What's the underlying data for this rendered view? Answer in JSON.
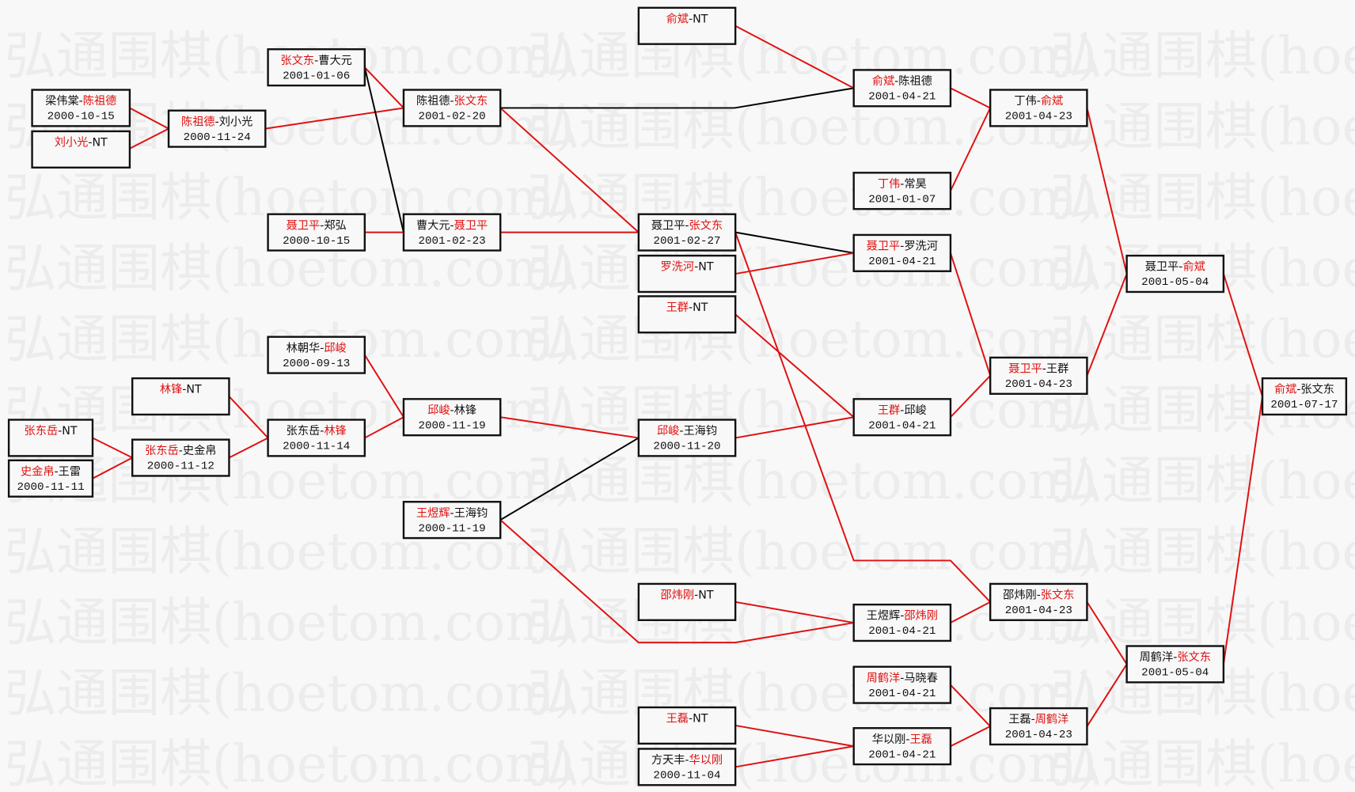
{
  "watermark": "弘通围棋(hoetom.com)",
  "colors": {
    "winner": "#e01010",
    "loser_link": "#000000",
    "text": "#111111"
  },
  "matches": [
    {
      "id": "A",
      "players": [
        {
          "name": "梁伟棠",
          "winner": false
        },
        {
          "name": "陈祖德",
          "winner": true
        }
      ],
      "date": "2000-10-15"
    },
    {
      "id": "B",
      "players": [
        {
          "name": "刘小光",
          "winner": true
        },
        {
          "name": "NT",
          "winner": false
        }
      ],
      "date": ""
    },
    {
      "id": "C",
      "players": [
        {
          "name": "陈祖德",
          "winner": true
        },
        {
          "name": "刘小光",
          "winner": false
        }
      ],
      "date": "2000-11-24"
    },
    {
      "id": "D",
      "players": [
        {
          "name": "张文东",
          "winner": true
        },
        {
          "name": "曹大元",
          "winner": false
        }
      ],
      "date": "2001-01-06"
    },
    {
      "id": "E",
      "players": [
        {
          "name": "聂卫平",
          "winner": true
        },
        {
          "name": "郑弘",
          "winner": false
        }
      ],
      "date": "2000-10-15"
    },
    {
      "id": "F",
      "players": [
        {
          "name": "陈祖德",
          "winner": false
        },
        {
          "name": "张文东",
          "winner": true
        }
      ],
      "date": "2001-02-20"
    },
    {
      "id": "G",
      "players": [
        {
          "name": "曹大元",
          "winner": false
        },
        {
          "name": "聂卫平",
          "winner": true
        }
      ],
      "date": "2001-02-23"
    },
    {
      "id": "H",
      "players": [
        {
          "name": "聂卫平",
          "winner": false
        },
        {
          "name": "张文东",
          "winner": true
        }
      ],
      "date": "2001-02-27"
    },
    {
      "id": "I",
      "players": [
        {
          "name": "俞斌",
          "winner": true
        },
        {
          "name": "NT",
          "winner": false
        }
      ],
      "date": ""
    },
    {
      "id": "J",
      "players": [
        {
          "name": "罗洗河",
          "winner": true
        },
        {
          "name": "NT",
          "winner": false
        }
      ],
      "date": ""
    },
    {
      "id": "K",
      "players": [
        {
          "name": "王群",
          "winner": true
        },
        {
          "name": "NT",
          "winner": false
        }
      ],
      "date": ""
    },
    {
      "id": "L",
      "players": [
        {
          "name": "俞斌",
          "winner": true
        },
        {
          "name": "陈祖德",
          "winner": false
        }
      ],
      "date": "2001-04-21"
    },
    {
      "id": "M",
      "players": [
        {
          "name": "丁伟",
          "winner": true
        },
        {
          "name": "常昊",
          "winner": false
        }
      ],
      "date": "2001-01-07"
    },
    {
      "id": "N",
      "players": [
        {
          "name": "聂卫平",
          "winner": true
        },
        {
          "name": "罗洗河",
          "winner": false
        }
      ],
      "date": "2001-04-21"
    },
    {
      "id": "O",
      "players": [
        {
          "name": "王群",
          "winner": true
        },
        {
          "name": "邱峻",
          "winner": false
        }
      ],
      "date": "2001-04-21"
    },
    {
      "id": "P",
      "players": [
        {
          "name": "丁伟",
          "winner": false
        },
        {
          "name": "俞斌",
          "winner": true
        }
      ],
      "date": "2001-04-23"
    },
    {
      "id": "Q",
      "players": [
        {
          "name": "聂卫平",
          "winner": true
        },
        {
          "name": "王群",
          "winner": false
        }
      ],
      "date": "2001-04-23"
    },
    {
      "id": "R",
      "players": [
        {
          "name": "聂卫平",
          "winner": false
        },
        {
          "name": "俞斌",
          "winner": true
        }
      ],
      "date": "2001-05-04"
    },
    {
      "id": "S",
      "players": [
        {
          "name": "俞斌",
          "winner": true
        },
        {
          "name": "张文东",
          "winner": false
        }
      ],
      "date": "2001-07-17"
    },
    {
      "id": "T",
      "players": [
        {
          "name": "周鹤洋",
          "winner": false
        },
        {
          "name": "张文东",
          "winner": true
        }
      ],
      "date": "2001-05-04"
    },
    {
      "id": "U",
      "players": [
        {
          "name": "邵炜刚",
          "winner": false
        },
        {
          "name": "张文东",
          "winner": true
        }
      ],
      "date": "2001-04-23"
    },
    {
      "id": "V",
      "players": [
        {
          "name": "王磊",
          "winner": false
        },
        {
          "name": "周鹤洋",
          "winner": true
        }
      ],
      "date": "2001-04-23"
    },
    {
      "id": "W",
      "players": [
        {
          "name": "王煜辉",
          "winner": false
        },
        {
          "name": "邵炜刚",
          "winner": true
        }
      ],
      "date": "2001-04-21"
    },
    {
      "id": "X",
      "players": [
        {
          "name": "周鹤洋",
          "winner": true
        },
        {
          "name": "马晓春",
          "winner": false
        }
      ],
      "date": "2001-04-21"
    },
    {
      "id": "Y",
      "players": [
        {
          "name": "华以刚",
          "winner": false
        },
        {
          "name": "王磊",
          "winner": true
        }
      ],
      "date": "2001-04-21"
    },
    {
      "id": "Z",
      "players": [
        {
          "name": "王磊",
          "winner": true
        },
        {
          "name": "NT",
          "winner": false
        }
      ],
      "date": ""
    },
    {
      "id": "AA",
      "players": [
        {
          "name": "方天丰",
          "winner": false
        },
        {
          "name": "华以刚",
          "winner": true
        }
      ],
      "date": "2000-11-04"
    },
    {
      "id": "AB",
      "players": [
        {
          "name": "邵炜刚",
          "winner": true
        },
        {
          "name": "NT",
          "winner": false
        }
      ],
      "date": ""
    },
    {
      "id": "AC",
      "players": [
        {
          "name": "邱峻",
          "winner": true
        },
        {
          "name": "王海钧",
          "winner": false
        }
      ],
      "date": "2000-11-20"
    },
    {
      "id": "AD",
      "players": [
        {
          "name": "王煜辉",
          "winner": true
        },
        {
          "name": "王海钧",
          "winner": false
        }
      ],
      "date": "2000-11-19"
    },
    {
      "id": "AE",
      "players": [
        {
          "name": "邱峻",
          "winner": true
        },
        {
          "name": "林锋",
          "winner": false
        }
      ],
      "date": "2000-11-19"
    },
    {
      "id": "AF",
      "players": [
        {
          "name": "林朝华",
          "winner": false
        },
        {
          "name": "邱峻",
          "winner": true
        }
      ],
      "date": "2000-09-13"
    },
    {
      "id": "AG",
      "players": [
        {
          "name": "张东岳",
          "winner": false
        },
        {
          "name": "林锋",
          "winner": true
        }
      ],
      "date": "2000-11-14"
    },
    {
      "id": "AH",
      "players": [
        {
          "name": "林锋",
          "winner": true
        },
        {
          "name": "NT",
          "winner": false
        }
      ],
      "date": ""
    },
    {
      "id": "AI",
      "players": [
        {
          "name": "张东岳",
          "winner": true
        },
        {
          "name": "史金帛",
          "winner": false
        }
      ],
      "date": "2000-11-12"
    },
    {
      "id": "AJ",
      "players": [
        {
          "name": "张东岳",
          "winner": true
        },
        {
          "name": "NT",
          "winner": false
        }
      ],
      "date": ""
    },
    {
      "id": "AK",
      "players": [
        {
          "name": "史金帛",
          "winner": true
        },
        {
          "name": "王雷",
          "winner": false
        }
      ],
      "date": "2000-11-11"
    }
  ]
}
